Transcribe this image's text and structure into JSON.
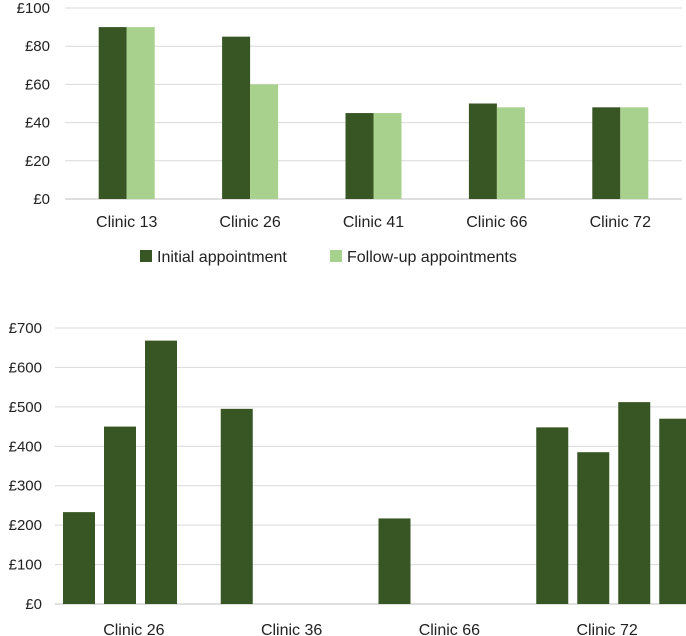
{
  "chart_data": [
    {
      "type": "bar",
      "title": "",
      "xlabel": "",
      "ylabel": "",
      "ylim": [
        0,
        100
      ],
      "yticks": [
        "£0",
        "£20",
        "£40",
        "£60",
        "£80",
        "£100"
      ],
      "ytick_values": [
        0,
        20,
        40,
        60,
        80,
        100
      ],
      "categories": [
        "Clinic 13",
        "Clinic 26",
        "Clinic 41",
        "Clinic 66",
        "Clinic 72"
      ],
      "series": [
        {
          "name": "Initial appointment",
          "color": "#375623",
          "values": [
            90,
            85,
            45,
            50,
            48
          ]
        },
        {
          "name": "Follow-up appointments",
          "color": "#a9d18e",
          "values": [
            90,
            60,
            45,
            48,
            48
          ]
        }
      ],
      "legend": "bottom",
      "grid": true
    },
    {
      "type": "bar",
      "title": "",
      "xlabel": "",
      "ylabel": "",
      "ylim": [
        0,
        700
      ],
      "yticks": [
        "£0",
        "£100",
        "£200",
        "£300",
        "£400",
        "£500",
        "£600",
        "£700"
      ],
      "ytick_values": [
        0,
        100,
        200,
        300,
        400,
        500,
        600,
        700
      ],
      "categories": [
        "Clinic 26",
        "Clinic 36",
        "Clinic 66",
        "Clinic 72"
      ],
      "groups": [
        {
          "category": "Clinic 26",
          "values": [
            233,
            450,
            668
          ]
        },
        {
          "category": "Clinic 36",
          "values": [
            495
          ]
        },
        {
          "category": "Clinic 66",
          "values": [
            217
          ]
        },
        {
          "category": "Clinic 72",
          "values": [
            448,
            385,
            512,
            470
          ]
        }
      ],
      "color": "#375623",
      "grid": true
    }
  ]
}
